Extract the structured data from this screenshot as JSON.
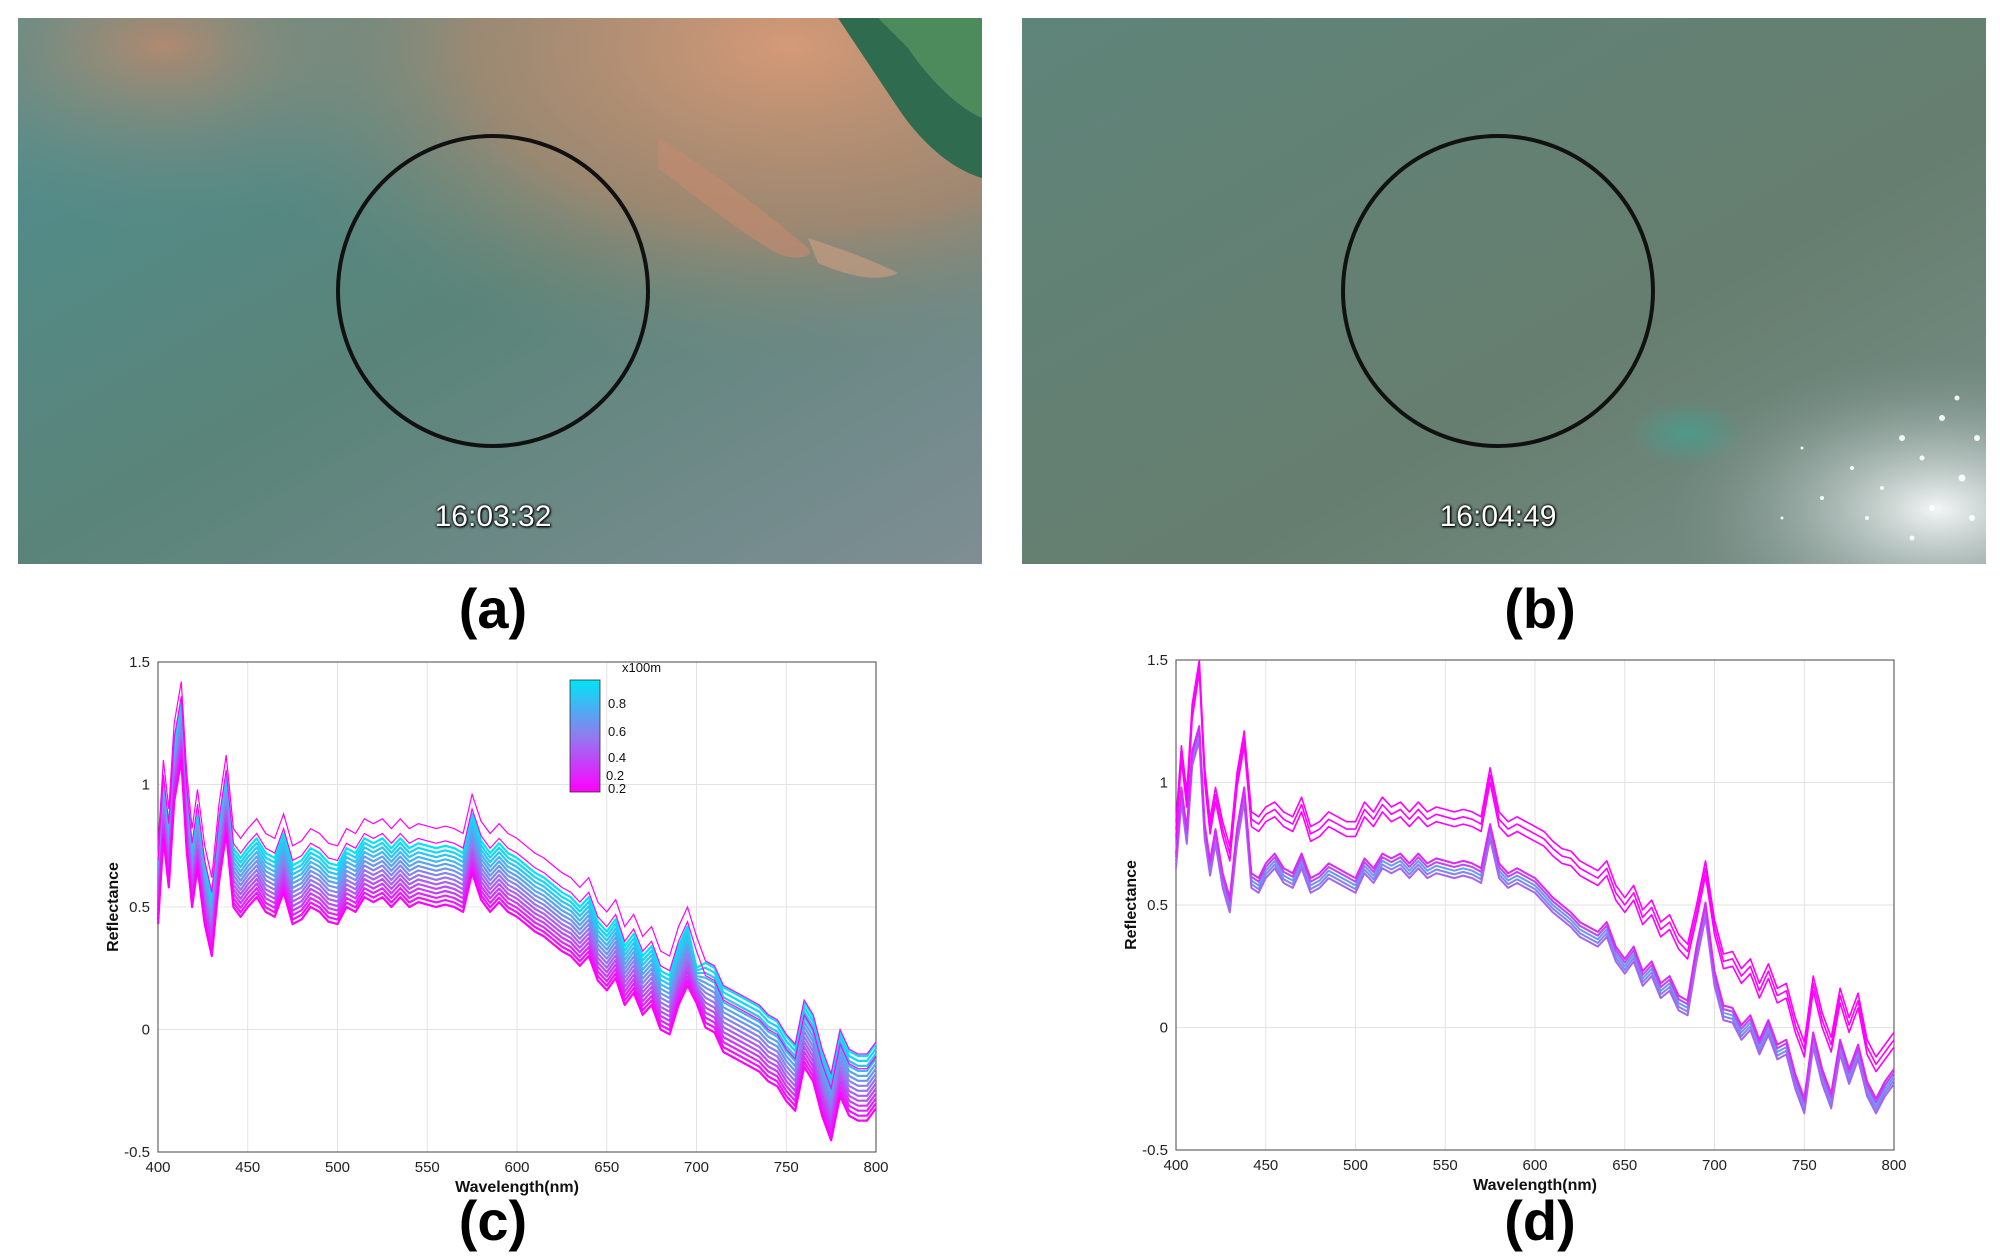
{
  "panels": {
    "a": {
      "label": "(a)",
      "timestamp": "16:03:32"
    },
    "b": {
      "label": "(b)",
      "timestamp": "16:04:49"
    },
    "c": {
      "label": "(c)"
    },
    "d": {
      "label": "(d)"
    }
  },
  "colors": {
    "cyan": "#00e5f5",
    "magenta": "#ff00ff",
    "mid": "#8f7cf0"
  },
  "chart_data": [
    {
      "panel": "c",
      "type": "line",
      "xlabel": "Wavelength(nm)",
      "ylabel": "Reflectance",
      "xlim": [
        400,
        800
      ],
      "ylim": [
        -0.5,
        1.5
      ],
      "xticks": [
        400,
        450,
        500,
        550,
        600,
        650,
        700,
        750,
        800
      ],
      "yticks": [
        -0.5,
        0,
        0.5,
        1,
        1.5
      ],
      "ytick_labels": [
        "-0.5",
        "0",
        "0.5",
        "1",
        "1.5"
      ],
      "grid": true,
      "colorbar": {
        "unit": "x100m",
        "ticks": [
          "0.8",
          "0.6",
          "0.4",
          "0.2",
          "0.2"
        ]
      },
      "x": [
        400,
        403,
        406,
        409,
        413,
        416,
        419,
        422,
        426,
        430,
        434,
        438,
        442,
        446,
        450,
        455,
        460,
        465,
        470,
        475,
        480,
        485,
        490,
        495,
        500,
        505,
        510,
        515,
        520,
        525,
        530,
        535,
        540,
        545,
        550,
        555,
        560,
        565,
        570,
        575,
        580,
        585,
        590,
        595,
        600,
        605,
        610,
        615,
        620,
        625,
        630,
        635,
        640,
        645,
        650,
        655,
        660,
        665,
        670,
        675,
        680,
        685,
        690,
        695,
        700,
        705,
        710,
        715,
        720,
        725,
        730,
        735,
        740,
        745,
        750,
        755,
        760,
        765,
        770,
        775,
        780,
        785,
        790,
        795,
        800
      ],
      "base": [
        0.55,
        0.9,
        0.7,
        1.05,
        1.22,
        0.85,
        0.62,
        0.78,
        0.55,
        0.42,
        0.72,
        0.92,
        0.62,
        0.58,
        0.62,
        0.66,
        0.6,
        0.58,
        0.68,
        0.55,
        0.57,
        0.62,
        0.6,
        0.56,
        0.55,
        0.62,
        0.6,
        0.66,
        0.64,
        0.66,
        0.62,
        0.66,
        0.62,
        0.64,
        0.63,
        0.62,
        0.63,
        0.62,
        0.6,
        0.76,
        0.65,
        0.6,
        0.64,
        0.6,
        0.58,
        0.55,
        0.52,
        0.5,
        0.47,
        0.44,
        0.42,
        0.38,
        0.42,
        0.32,
        0.28,
        0.33,
        0.22,
        0.27,
        0.18,
        0.22,
        0.12,
        0.1,
        0.22,
        0.3,
        0.18,
        0.08,
        0.06,
        -0.02,
        -0.04,
        -0.06,
        -0.08,
        -0.1,
        -0.14,
        -0.16,
        -0.22,
        -0.26,
        -0.08,
        -0.14,
        -0.28,
        -0.38,
        -0.2,
        -0.28,
        -0.3,
        -0.3,
        -0.25
      ],
      "series_count": 14,
      "series_spread": [
        0.12,
        -0.12
      ]
    },
    {
      "panel": "d",
      "type": "line",
      "xlabel": "Wavelength(nm)",
      "ylabel": "Reflectance",
      "xlim": [
        400,
        800
      ],
      "ylim": [
        -0.5,
        1.5
      ],
      "xticks": [
        400,
        450,
        500,
        550,
        600,
        650,
        700,
        750,
        800
      ],
      "yticks": [
        -0.5,
        0,
        0.5,
        1,
        1.5
      ],
      "ytick_labels": [
        "-0.5",
        "0",
        "0.5",
        "1",
        "1.5"
      ],
      "grid": true,
      "x": [
        400,
        403,
        406,
        409,
        413,
        416,
        419,
        422,
        426,
        430,
        434,
        438,
        442,
        446,
        450,
        455,
        460,
        465,
        470,
        475,
        480,
        485,
        490,
        495,
        500,
        505,
        510,
        515,
        520,
        525,
        530,
        535,
        540,
        545,
        550,
        555,
        560,
        565,
        570,
        575,
        580,
        585,
        590,
        595,
        600,
        605,
        610,
        615,
        620,
        625,
        630,
        635,
        640,
        645,
        650,
        655,
        660,
        665,
        670,
        675,
        680,
        685,
        690,
        695,
        700,
        705,
        710,
        715,
        720,
        725,
        730,
        735,
        740,
        745,
        750,
        755,
        760,
        765,
        770,
        775,
        780,
        785,
        790,
        795,
        800
      ],
      "low": [
        0.68,
        0.95,
        0.78,
        1.1,
        1.2,
        0.8,
        0.65,
        0.78,
        0.6,
        0.5,
        0.78,
        0.95,
        0.6,
        0.58,
        0.64,
        0.68,
        0.62,
        0.6,
        0.68,
        0.58,
        0.6,
        0.64,
        0.62,
        0.6,
        0.58,
        0.66,
        0.62,
        0.68,
        0.66,
        0.68,
        0.64,
        0.68,
        0.64,
        0.66,
        0.65,
        0.64,
        0.65,
        0.64,
        0.62,
        0.8,
        0.64,
        0.6,
        0.62,
        0.6,
        0.58,
        0.54,
        0.5,
        0.47,
        0.44,
        0.4,
        0.38,
        0.36,
        0.4,
        0.3,
        0.25,
        0.3,
        0.2,
        0.24,
        0.15,
        0.18,
        0.1,
        0.08,
        0.3,
        0.48,
        0.2,
        0.06,
        0.05,
        -0.02,
        0.02,
        -0.08,
        0.0,
        -0.1,
        -0.08,
        -0.22,
        -0.32,
        -0.05,
        -0.2,
        -0.3,
        -0.08,
        -0.2,
        -0.1,
        -0.25,
        -0.32,
        -0.25,
        -0.2
      ],
      "high_offset": [
        0.1,
        0.14,
        0.12,
        0.16,
        0.25,
        0.2,
        0.14,
        0.14,
        0.18,
        0.18,
        0.2,
        0.2,
        0.22,
        0.22,
        0.2,
        0.18,
        0.2,
        0.2,
        0.2,
        0.18,
        0.18,
        0.18,
        0.18,
        0.18,
        0.2,
        0.2,
        0.2,
        0.2,
        0.18,
        0.18,
        0.18,
        0.18,
        0.18,
        0.18,
        0.18,
        0.18,
        0.18,
        0.18,
        0.18,
        0.2,
        0.18,
        0.18,
        0.18,
        0.18,
        0.18,
        0.2,
        0.2,
        0.2,
        0.22,
        0.22,
        0.22,
        0.22,
        0.22,
        0.22,
        0.22,
        0.22,
        0.22,
        0.22,
        0.22,
        0.22,
        0.22,
        0.2,
        0.14,
        0.14,
        0.18,
        0.18,
        0.2,
        0.2,
        0.2,
        0.2,
        0.2,
        0.2,
        0.2,
        0.2,
        0.2,
        0.2,
        0.2,
        0.2,
        0.18,
        0.18,
        0.18,
        0.14,
        0.14,
        0.12,
        0.12
      ],
      "series_count": 8
    }
  ]
}
